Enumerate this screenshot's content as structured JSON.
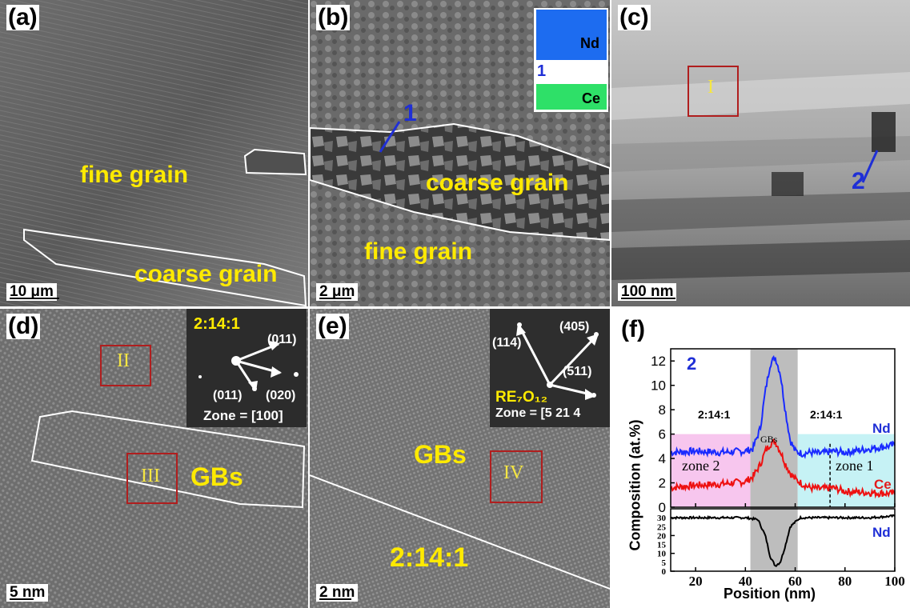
{
  "panels": {
    "a": {
      "label": "(a)",
      "fine": "fine grain",
      "coarse": "coarse grain",
      "scale": "10 μm"
    },
    "b": {
      "label": "(b)",
      "marker": "1",
      "coarse": "coarse grain",
      "fine": "fine grain",
      "scale": "2 μm",
      "inset": {
        "nd": "Nd",
        "ce": "Ce",
        "num": "1"
      }
    },
    "c": {
      "label": "(c)",
      "box": "I",
      "marker": "2",
      "scale": "100 nm"
    },
    "d": {
      "label": "(d)",
      "box2": "II",
      "box3": "III",
      "gbs": "GBs",
      "scale": "5 nm",
      "inset": {
        "phase": "2:14:1",
        "i1": "(011)",
        "i2": "(011)",
        "i3": "(020)",
        "zone": "Zone = [100]"
      }
    },
    "e": {
      "label": "(e)",
      "box": "IV",
      "gbs": "GBs",
      "phase": "2:14:1",
      "scale": "2 nm",
      "inset": {
        "i1": "(405)",
        "i2": "(114)",
        "i3": "(511)",
        "phase": "RE₇O₁₂",
        "zone": "Zone = [5 21 4"
      }
    },
    "f": {
      "label": "(f)",
      "marker": "2",
      "ylabel": "Composition (at.%)",
      "xlabel": "Position (nm)",
      "left_phase": "2:14:1",
      "right_phase": "2:14:1",
      "gbs": "GBs",
      "zone2": "zone 2",
      "zone1": "zone 1",
      "nd": "Nd",
      "ce": "Ce",
      "nd_lower": "Nd"
    }
  },
  "chart_data": {
    "type": "line",
    "xlabel": "Position (nm)",
    "ylabel": "Composition (at.%)",
    "xlim": [
      10,
      100
    ],
    "x_ticks": [
      20,
      40,
      60,
      80,
      100
    ],
    "top": {
      "ylim": [
        0,
        13
      ],
      "y_ticks": [
        0,
        2,
        4,
        6,
        8,
        10,
        12
      ],
      "series": [
        {
          "name": "Nd",
          "color": "#1a2bff",
          "x": [
            10,
            20,
            30,
            40,
            43,
            46,
            48,
            50,
            52,
            54,
            56,
            58,
            60,
            63,
            66,
            70,
            75,
            80,
            90,
            100
          ],
          "y": [
            4.5,
            4.6,
            4.5,
            4.6,
            4.8,
            6.5,
            9.5,
            11.8,
            12.3,
            11.0,
            8.0,
            5.5,
            4.6,
            4.4,
            4.5,
            4.4,
            4.6,
            4.5,
            4.8,
            5.1
          ]
        },
        {
          "name": "Ce",
          "color": "#ee1111",
          "x": [
            10,
            20,
            30,
            40,
            43,
            46,
            48,
            50,
            52,
            54,
            56,
            58,
            60,
            63,
            66,
            70,
            75,
            80,
            90,
            100
          ],
          "y": [
            1.6,
            1.8,
            1.9,
            2.1,
            2.5,
            3.5,
            4.6,
            5.2,
            5.4,
            4.6,
            3.6,
            2.8,
            2.3,
            1.9,
            1.6,
            1.5,
            1.6,
            1.3,
            1.2,
            1.1
          ]
        }
      ],
      "shaded": [
        {
          "from": 10,
          "to": 42,
          "color": "#f7c6ee"
        },
        {
          "from": 42,
          "to": 61,
          "color": "#bdbdbd"
        },
        {
          "from": 61,
          "to": 100,
          "color": "#c6f2f5"
        }
      ],
      "dashed_x": 74
    },
    "bottom": {
      "ylim": [
        0,
        35
      ],
      "y_ticks": [
        0,
        10,
        20,
        30
      ],
      "minor_ticks": [
        5,
        15,
        25
      ],
      "series": [
        {
          "name": "Nd",
          "color": "#000000",
          "x": [
            10,
            30,
            40,
            45,
            48,
            50,
            52,
            54,
            56,
            58,
            62,
            70,
            80,
            90,
            100
          ],
          "y": [
            30,
            30,
            30,
            29,
            20,
            8,
            3,
            5,
            14,
            25,
            30,
            30,
            30,
            30,
            31
          ]
        }
      ]
    }
  }
}
